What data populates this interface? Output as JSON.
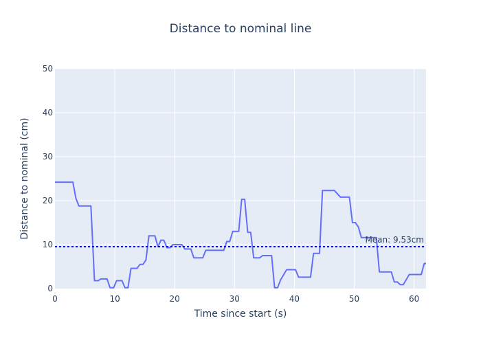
{
  "chart_data": {
    "type": "line",
    "title": "Distance to nominal line",
    "xlabel": "Time since start (s)",
    "ylabel": "Distance to nominal (cm)",
    "xlim": [
      0,
      62
    ],
    "ylim": [
      0,
      50
    ],
    "x_ticks": [
      0,
      10,
      20,
      30,
      40,
      50,
      60
    ],
    "y_ticks": [
      0,
      10,
      20,
      30,
      40,
      50
    ],
    "grid": true,
    "colors": {
      "line": "#636efa",
      "mean_line": "#0000cd",
      "plot_bg": "#e5ecf6",
      "grid": "#ffffff",
      "text": "#2a3f5f"
    },
    "mean": {
      "value": 9.53,
      "label": "Mean: 9.53cm"
    },
    "series": [
      {
        "points": [
          [
            0,
            24.2
          ],
          [
            3,
            24.2
          ],
          [
            3.5,
            20.5
          ],
          [
            4,
            18.8
          ],
          [
            6,
            18.8
          ],
          [
            6.6,
            1.8
          ],
          [
            7.2,
            1.8
          ],
          [
            7.7,
            2.2
          ],
          [
            8.7,
            2.2
          ],
          [
            9.2,
            0.2
          ],
          [
            9.8,
            0.2
          ],
          [
            10.3,
            1.8
          ],
          [
            11.2,
            1.8
          ],
          [
            11.7,
            0.2
          ],
          [
            12.2,
            0.2
          ],
          [
            12.7,
            4.6
          ],
          [
            13.7,
            4.6
          ],
          [
            14.2,
            5.5
          ],
          [
            14.7,
            5.5
          ],
          [
            15.2,
            6.5
          ],
          [
            15.7,
            12
          ],
          [
            16.7,
            12
          ],
          [
            17.2,
            9.5
          ],
          [
            17.7,
            11
          ],
          [
            18.2,
            11
          ],
          [
            18.7,
            9.3
          ],
          [
            19.2,
            9.3
          ],
          [
            19.7,
            10
          ],
          [
            21.2,
            10
          ],
          [
            21.7,
            9
          ],
          [
            22.7,
            9
          ],
          [
            23.2,
            7
          ],
          [
            24.7,
            7
          ],
          [
            25.2,
            8.7
          ],
          [
            28.2,
            8.7
          ],
          [
            28.7,
            10.7
          ],
          [
            29.2,
            10.7
          ],
          [
            29.7,
            13
          ],
          [
            30.7,
            13
          ],
          [
            31.2,
            20.3
          ],
          [
            31.7,
            20.3
          ],
          [
            32.2,
            12.8
          ],
          [
            32.7,
            12.8
          ],
          [
            33.2,
            7
          ],
          [
            34.2,
            7
          ],
          [
            34.7,
            7.5
          ],
          [
            36.2,
            7.5
          ],
          [
            36.7,
            0.2
          ],
          [
            37.2,
            0.2
          ],
          [
            37.7,
            2
          ],
          [
            38.7,
            4.3
          ],
          [
            40.2,
            4.3
          ],
          [
            40.7,
            2.6
          ],
          [
            42.7,
            2.6
          ],
          [
            43.2,
            8
          ],
          [
            44.2,
            8
          ],
          [
            44.7,
            22.3
          ],
          [
            46.7,
            22.3
          ],
          [
            47.7,
            20.8
          ],
          [
            49.2,
            20.8
          ],
          [
            49.7,
            15
          ],
          [
            50.2,
            15
          ],
          [
            50.7,
            14
          ],
          [
            51.2,
            11.6
          ],
          [
            52.2,
            11.6
          ],
          [
            53.7,
            11.6
          ],
          [
            54.2,
            3.8
          ],
          [
            56.2,
            3.8
          ],
          [
            56.7,
            1.5
          ],
          [
            57.2,
            1.5
          ],
          [
            57.7,
            0.9
          ],
          [
            58.2,
            0.9
          ],
          [
            59.2,
            3.2
          ],
          [
            61.2,
            3.2
          ],
          [
            61.7,
            5.7
          ],
          [
            62,
            5.7
          ]
        ]
      }
    ]
  }
}
